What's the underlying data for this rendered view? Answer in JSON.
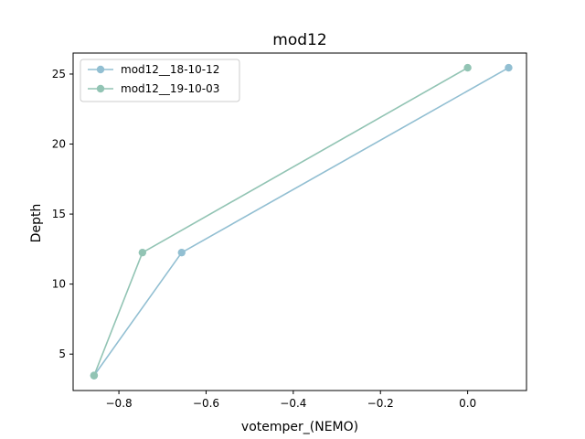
{
  "chart_data": {
    "type": "line",
    "title": "mod12",
    "xlabel": "votemper_(NEMO)",
    "ylabel": "Depth",
    "xlim": [
      -0.905,
      0.135
    ],
    "ylim": [
      2.4,
      26.5
    ],
    "xticks": [
      -0.8,
      -0.6,
      -0.4,
      -0.2,
      0.0
    ],
    "xtick_labels": [
      "−0.8",
      "−0.6",
      "−0.4",
      "−0.2",
      "0.0"
    ],
    "yticks": [
      5,
      10,
      15,
      20,
      25
    ],
    "ytick_labels": [
      "5",
      "10",
      "15",
      "20",
      "25"
    ],
    "legend_position": "top-left",
    "series": [
      {
        "name": "mod12__18-10-12",
        "color": "#92bfd2",
        "x": [
          -0.857,
          -0.656,
          0.094
        ],
        "y": [
          3.47,
          12.25,
          25.45
        ]
      },
      {
        "name": "mod12__19-10-03",
        "color": "#92c4b4",
        "x": [
          -0.857,
          -0.746,
          0.0
        ],
        "y": [
          3.47,
          12.25,
          25.45
        ]
      }
    ]
  }
}
